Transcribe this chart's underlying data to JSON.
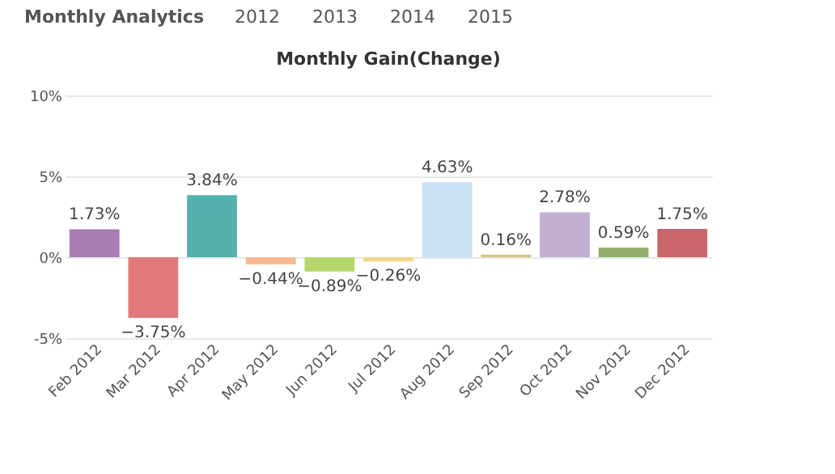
{
  "chart_data": {
    "type": "bar",
    "title": "Monthly Gain(Change)",
    "categories": [
      "Feb 2012",
      "Mar 2012",
      "Apr 2012",
      "May 2012",
      "Jun 2012",
      "Jul 2012",
      "Aug 2012",
      "Sep 2012",
      "Oct 2012",
      "Nov 2012",
      "Dec 2012"
    ],
    "values": [
      1.73,
      -3.75,
      3.84,
      -0.44,
      -0.89,
      -0.26,
      4.63,
      0.16,
      2.78,
      0.59,
      1.75
    ],
    "value_labels": [
      "1.73%",
      "−3.75%",
      "3.84%",
      "−0.44%",
      "−0.89%",
      "−0.26%",
      "4.63%",
      "0.16%",
      "2.78%",
      "0.59%",
      "1.75%"
    ],
    "colors": [
      "#a77db4",
      "#e07a7a",
      "#55b1ad",
      "#f7b88e",
      "#b6d66c",
      "#f2d68a",
      "#c9e1f6",
      "#cfc87a",
      "#c3afd3",
      "#8fad6a",
      "#c9666b"
    ],
    "ylim": [
      -5,
      10
    ],
    "yticks": [
      {
        "value": -5,
        "label": "-5%"
      },
      {
        "value": 0,
        "label": "0%"
      },
      {
        "value": 5,
        "label": "5%"
      },
      {
        "value": 10,
        "label": "10%"
      }
    ],
    "grid": "y",
    "annotations": [
      "Monthly Analytics",
      "2012",
      "2013",
      "2014",
      "2015"
    ]
  }
}
